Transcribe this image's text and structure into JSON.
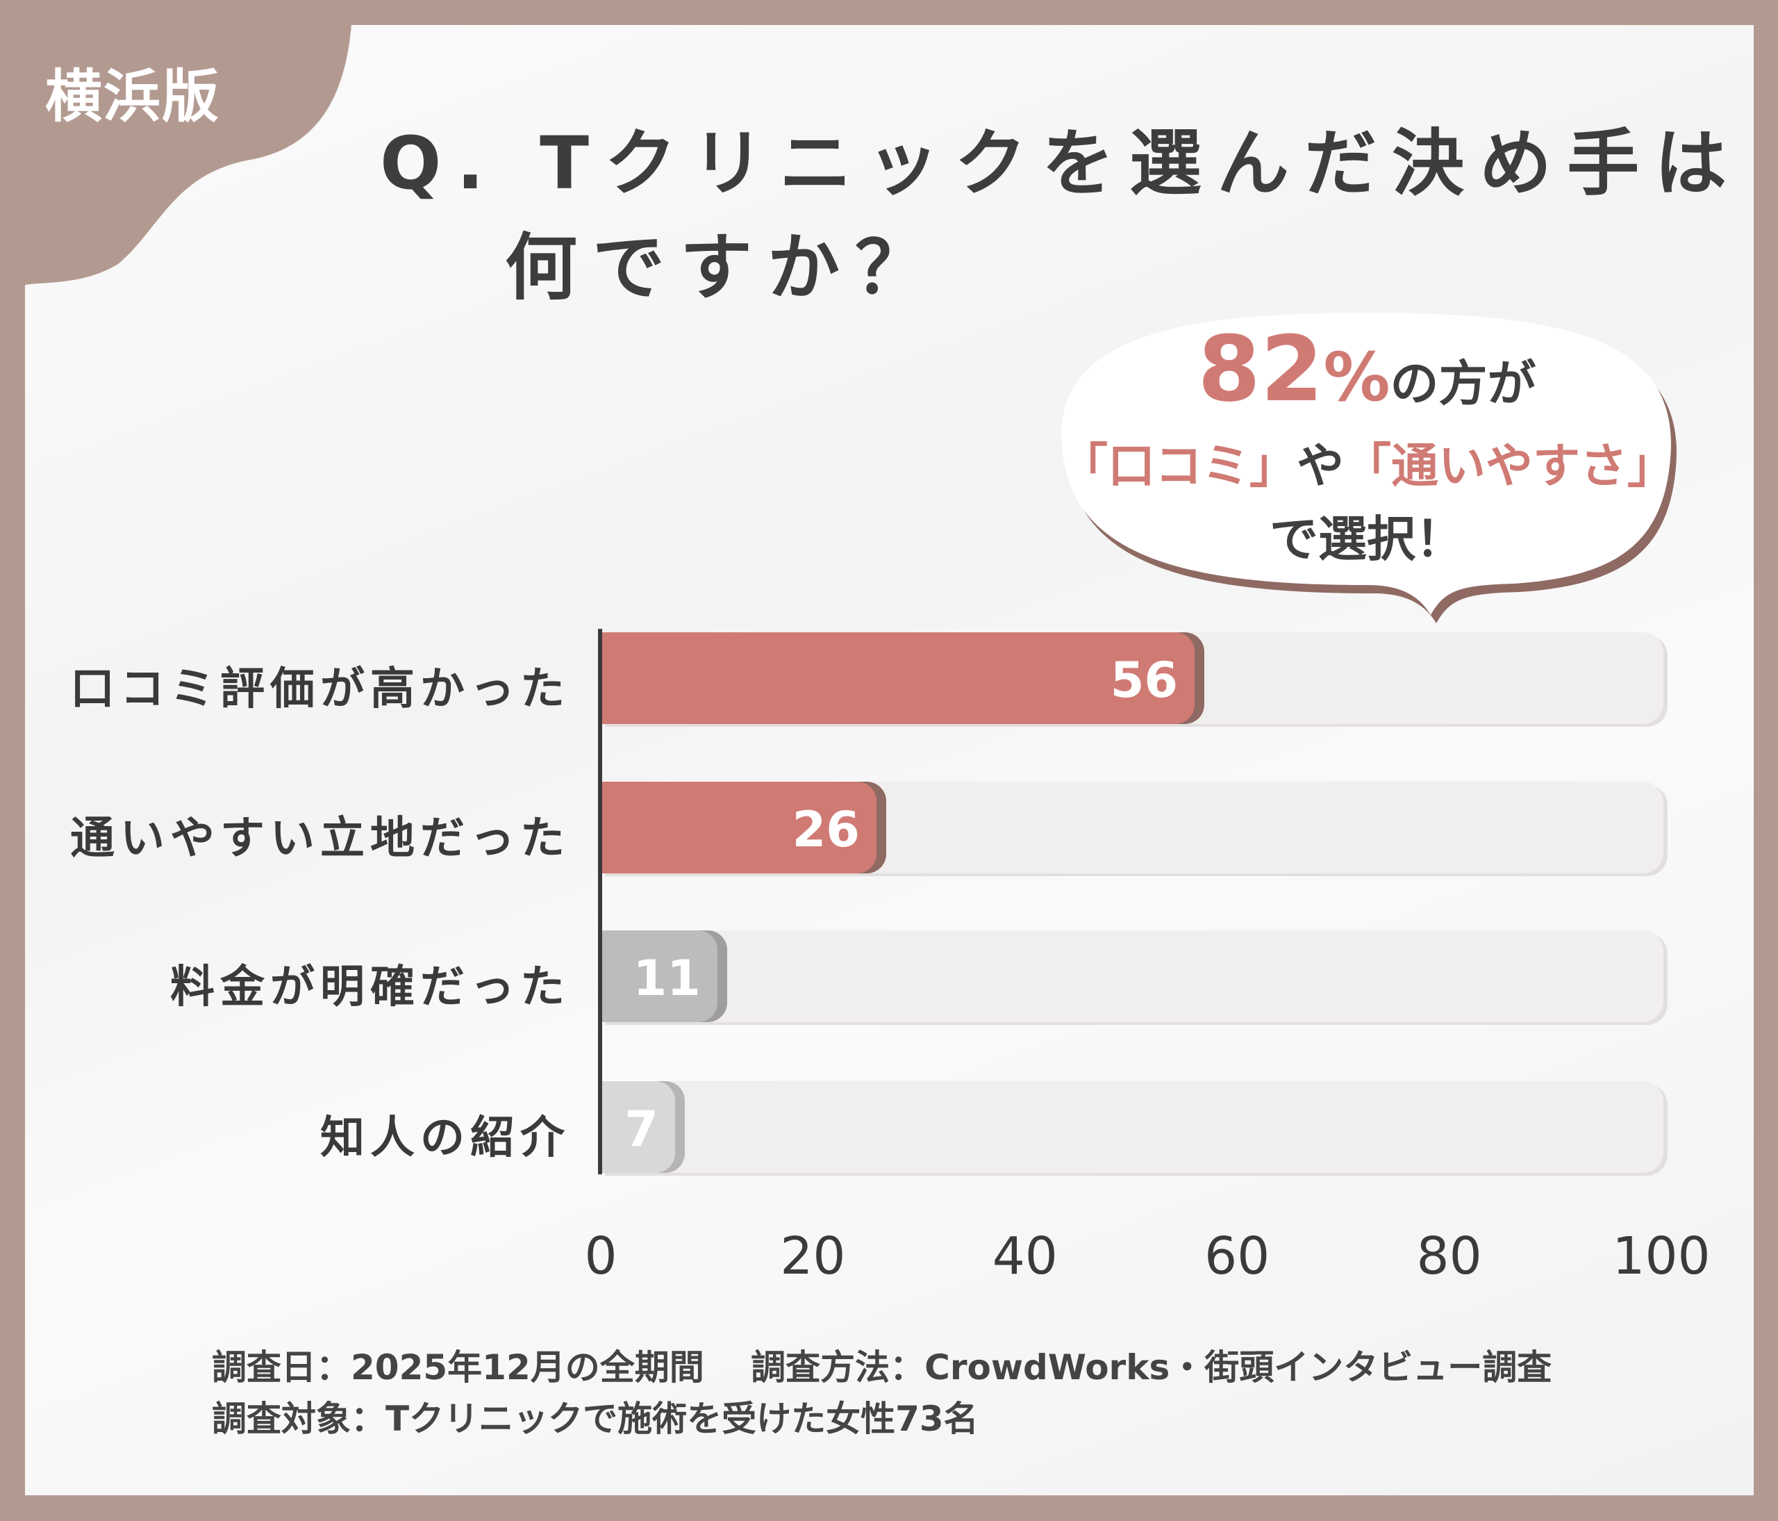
{
  "badge": "横浜版",
  "title": {
    "line1": "Q. Tクリニックを選んだ決め手は",
    "line2": "何ですか？"
  },
  "callout": {
    "percent": "82",
    "percent_sign": "%",
    "line1_suffix": "の方が",
    "line2_q1": "「口コミ」",
    "line2_mid": "や",
    "line2_q2": "「通いやすさ」",
    "line3": "で選択！"
  },
  "chart_data": {
    "type": "bar",
    "orientation": "horizontal",
    "categories": [
      "口コミ評価が高かった",
      "通いやすい立地だった",
      "料金が明確だった",
      "知人の紹介"
    ],
    "values": [
      56,
      26,
      11,
      7
    ],
    "value_labels": [
      "56",
      "26",
      "11",
      "7"
    ],
    "xlim": [
      0,
      100
    ],
    "xticks": [
      "0",
      "20",
      "40",
      "60",
      "80",
      "100"
    ],
    "colors": [
      "#d07a74",
      "#d07a74",
      "#bdbcbc",
      "#d9d8d8"
    ],
    "shadow_colors": [
      "#8f6a63",
      "#8f6a63",
      "#a09e9d",
      "#b7b5b4"
    ]
  },
  "footer": {
    "line1": "調査日：2025年12月の全期間　 調査方法：CrowdWorks・街頭インタビュー調査",
    "line2": "調査対象：Tクリニックで施術を受けた女性73名"
  },
  "colors": {
    "frame": "#b39a91",
    "accent": "#d07a74",
    "text": "#3f3f3f"
  }
}
